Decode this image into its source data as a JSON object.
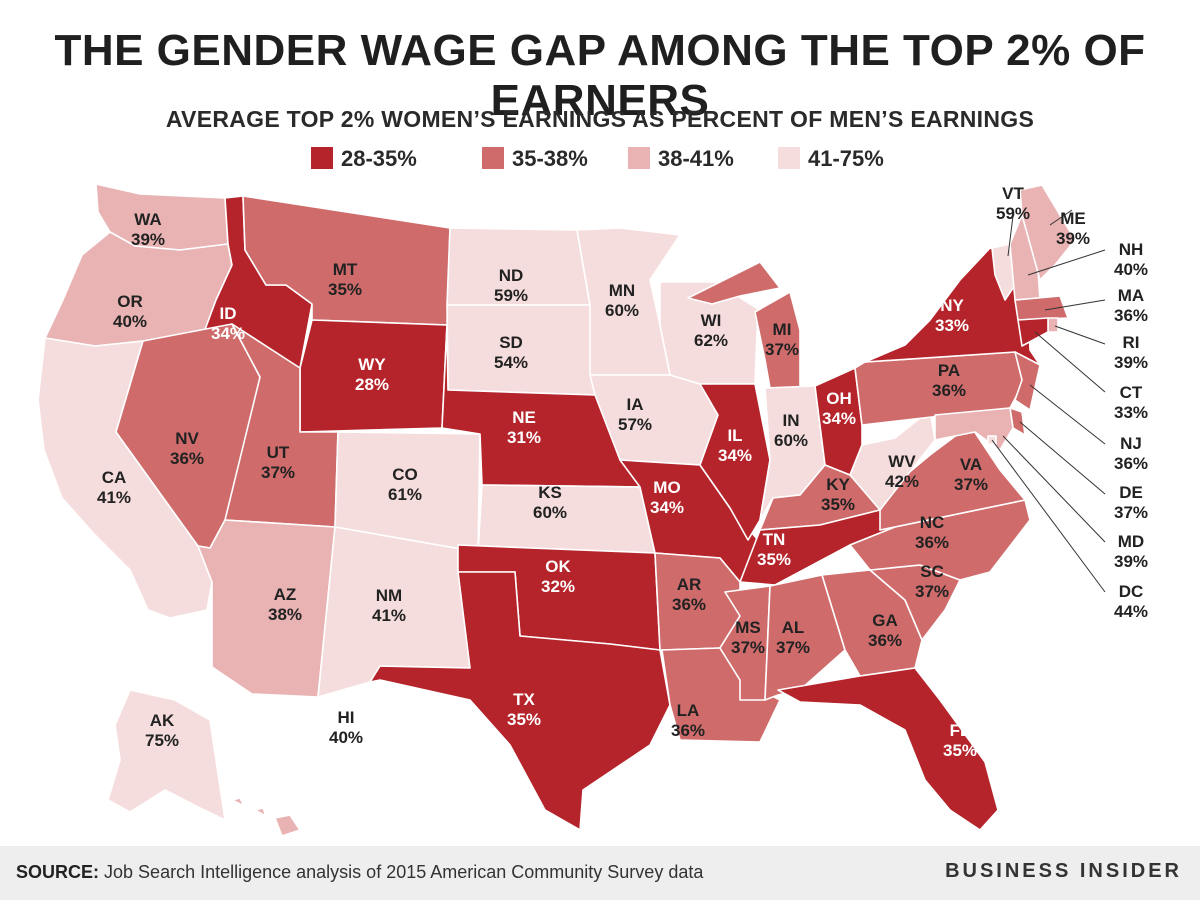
{
  "title": "THE GENDER WAGE GAP AMONG THE TOP 2% OF EARNERS",
  "subtitle": "AVERAGE TOP 2% WOMEN’S EARNINGS AS PERCENT OF MEN’S EARNINGS",
  "colors": {
    "bin1": "#b5242b",
    "bin2": "#cf6b6b",
    "bin3": "#e9b3b3",
    "bin4": "#f6dddd",
    "border": "#ffffff",
    "label_dark": "#222222",
    "label_light": "#ffffff"
  },
  "legend": [
    {
      "label": "28-35%",
      "color_key": "bin1"
    },
    {
      "label": "35-38%",
      "color_key": "bin2"
    },
    {
      "label": "38-41%",
      "color_key": "bin3"
    },
    {
      "label": "41-75%",
      "color_key": "bin4"
    }
  ],
  "states": [
    {
      "abbr": "WA",
      "value": "39%",
      "bin": 3
    },
    {
      "abbr": "OR",
      "value": "40%",
      "bin": 3
    },
    {
      "abbr": "CA",
      "value": "41%",
      "bin": 4
    },
    {
      "abbr": "ID",
      "value": "34%",
      "bin": 1
    },
    {
      "abbr": "NV",
      "value": "36%",
      "bin": 2
    },
    {
      "abbr": "MT",
      "value": "35%",
      "bin": 2
    },
    {
      "abbr": "WY",
      "value": "28%",
      "bin": 1
    },
    {
      "abbr": "UT",
      "value": "37%",
      "bin": 2
    },
    {
      "abbr": "AZ",
      "value": "38%",
      "bin": 3
    },
    {
      "abbr": "CO",
      "value": "61%",
      "bin": 4
    },
    {
      "abbr": "NM",
      "value": "41%",
      "bin": 4
    },
    {
      "abbr": "ND",
      "value": "59%",
      "bin": 4
    },
    {
      "abbr": "SD",
      "value": "54%",
      "bin": 4
    },
    {
      "abbr": "NE",
      "value": "31%",
      "bin": 1
    },
    {
      "abbr": "KS",
      "value": "60%",
      "bin": 4
    },
    {
      "abbr": "OK",
      "value": "32%",
      "bin": 1
    },
    {
      "abbr": "TX",
      "value": "35%",
      "bin": 1
    },
    {
      "abbr": "MN",
      "value": "60%",
      "bin": 4
    },
    {
      "abbr": "IA",
      "value": "57%",
      "bin": 4
    },
    {
      "abbr": "MO",
      "value": "34%",
      "bin": 1
    },
    {
      "abbr": "AR",
      "value": "36%",
      "bin": 2
    },
    {
      "abbr": "LA",
      "value": "36%",
      "bin": 2
    },
    {
      "abbr": "WI",
      "value": "62%",
      "bin": 4
    },
    {
      "abbr": "IL",
      "value": "34%",
      "bin": 1
    },
    {
      "abbr": "MI",
      "value": "37%",
      "bin": 2
    },
    {
      "abbr": "IN",
      "value": "60%",
      "bin": 4
    },
    {
      "abbr": "OH",
      "value": "34%",
      "bin": 1
    },
    {
      "abbr": "KY",
      "value": "35%",
      "bin": 2
    },
    {
      "abbr": "TN",
      "value": "35%",
      "bin": 1
    },
    {
      "abbr": "MS",
      "value": "37%",
      "bin": 2
    },
    {
      "abbr": "AL",
      "value": "37%",
      "bin": 2
    },
    {
      "abbr": "GA",
      "value": "36%",
      "bin": 2
    },
    {
      "abbr": "FL",
      "value": "35%",
      "bin": 1
    },
    {
      "abbr": "SC",
      "value": "37%",
      "bin": 2
    },
    {
      "abbr": "NC",
      "value": "36%",
      "bin": 2
    },
    {
      "abbr": "VA",
      "value": "37%",
      "bin": 2
    },
    {
      "abbr": "WV",
      "value": "42%",
      "bin": 4
    },
    {
      "abbr": "PA",
      "value": "36%",
      "bin": 2
    },
    {
      "abbr": "NY",
      "value": "33%",
      "bin": 1
    },
    {
      "abbr": "VT",
      "value": "59%",
      "bin": 4
    },
    {
      "abbr": "NH",
      "value": "40%",
      "bin": 3
    },
    {
      "abbr": "ME",
      "value": "39%",
      "bin": 3
    },
    {
      "abbr": "MA",
      "value": "36%",
      "bin": 2
    },
    {
      "abbr": "RI",
      "value": "39%",
      "bin": 3
    },
    {
      "abbr": "CT",
      "value": "33%",
      "bin": 1
    },
    {
      "abbr": "NJ",
      "value": "36%",
      "bin": 2
    },
    {
      "abbr": "DE",
      "value": "37%",
      "bin": 2
    },
    {
      "abbr": "MD",
      "value": "39%",
      "bin": 3
    },
    {
      "abbr": "DC",
      "value": "44%",
      "bin": 4
    },
    {
      "abbr": "AK",
      "value": "75%",
      "bin": 4
    },
    {
      "abbr": "HI",
      "value": "40%",
      "bin": 3
    }
  ],
  "footer": {
    "source_label": "SOURCE:",
    "source_text": "Job Search Intelligence analysis of 2015 American Community Survey data",
    "brand": "BUSINESS INSIDER"
  }
}
